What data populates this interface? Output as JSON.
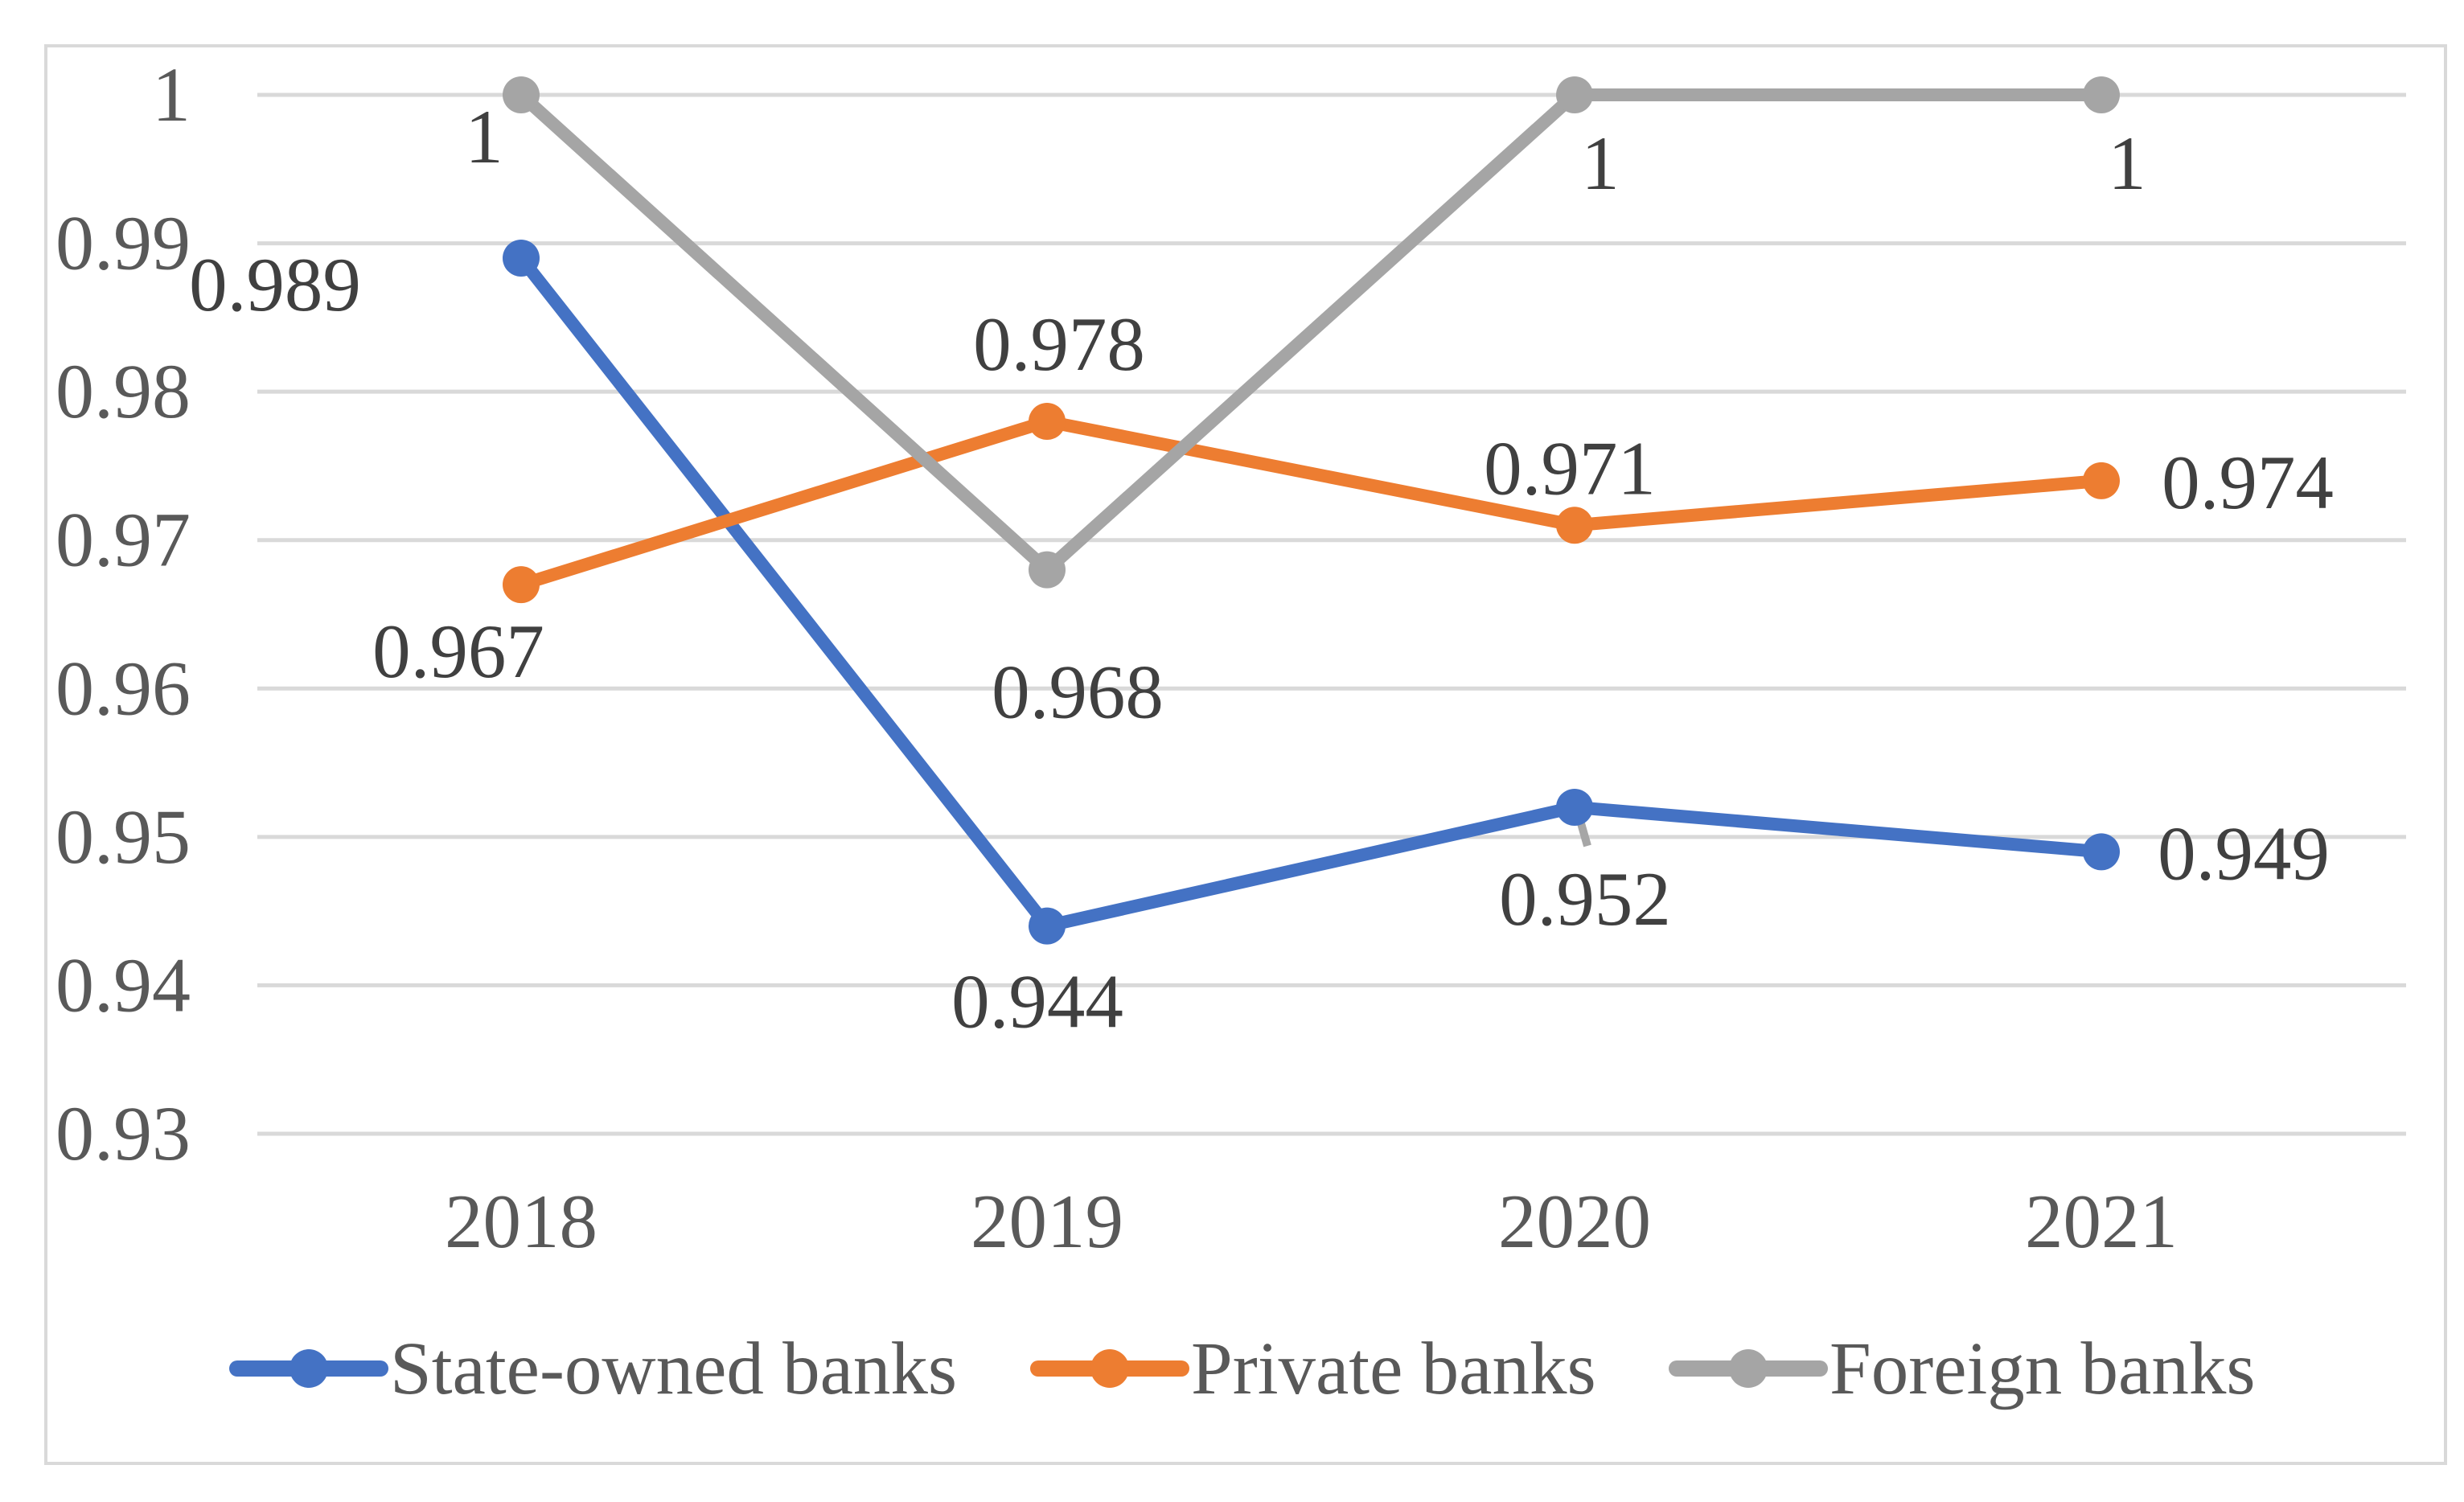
{
  "chart_data": {
    "type": "line",
    "title": "",
    "categories": [
      "2018",
      "2019",
      "2020",
      "2021"
    ],
    "series": [
      {
        "name": "State-owned banks",
        "color": "#4472C4",
        "values": [
          0.989,
          0.944,
          0.952,
          0.949
        ],
        "labels": [
          "0.989",
          "0.944",
          "0.952",
          "0.949"
        ]
      },
      {
        "name": "Private banks",
        "color": "#ED7D31",
        "values": [
          0.967,
          0.978,
          0.971,
          0.974
        ],
        "labels": [
          "0.967",
          "0.978",
          "0.971",
          "0.974"
        ]
      },
      {
        "name": "Foreign banks",
        "color": "#A5A5A5",
        "values": [
          1,
          0.968,
          1,
          1
        ],
        "labels": [
          "1",
          "0.968",
          "1",
          "1"
        ]
      }
    ],
    "y_axis": {
      "min": 0.93,
      "max": 1.0,
      "step": 0.01,
      "tick_labels": [
        "1",
        "0.99",
        "0.98",
        "0.97",
        "0.96",
        "0.95",
        "0.94",
        "0.93"
      ]
    },
    "x_axis": {
      "tick_labels": [
        "2018",
        "2019",
        "2020",
        "2021"
      ]
    },
    "grid": true,
    "legend_position": "bottom",
    "colors": {
      "gridline": "#D9D9D9",
      "chart_border": "#D9D9D9",
      "axis_text": "#595959",
      "data_label_text": "#404040",
      "leader_line": "#A6A6A6",
      "background": "#FFFFFF"
    }
  }
}
